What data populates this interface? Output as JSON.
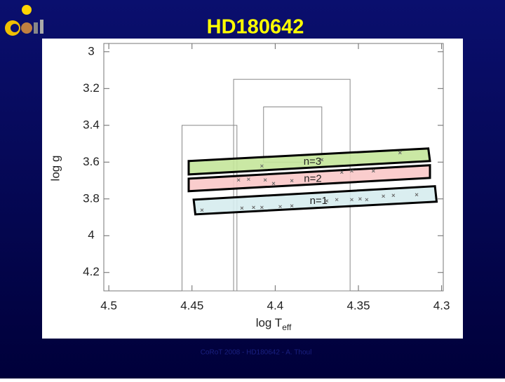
{
  "slide_title": "HD180642",
  "footer": "CoRoT 2008 - HD180642 - A. Thoul",
  "chart_data": {
    "type": "scatter",
    "xlabel": "log T",
    "xlabel_sub": "eff",
    "ylabel": "log g",
    "xlim": [
      4.503,
      4.299
    ],
    "ylim": [
      2.955,
      4.3
    ],
    "xticks": [
      4.5,
      4.45,
      4.4,
      4.35,
      4.3
    ],
    "yticks": [
      3,
      3.2,
      3.4,
      3.6,
      3.8,
      4,
      4.2
    ],
    "boxes": [
      {
        "x": [
          4.425,
          4.355
        ],
        "y": [
          3.15,
          4.3
        ]
      },
      {
        "x": [
          4.407,
          4.372
        ],
        "y": [
          3.3,
          3.6
        ]
      },
      {
        "x": [
          4.456,
          4.423
        ],
        "y": [
          3.4,
          4.3
        ]
      }
    ],
    "bands": [
      {
        "name": "n=3",
        "color": "#c4e69a",
        "x": [
          4.452,
          4.308,
          4.307,
          4.452
        ],
        "y": [
          3.594,
          3.526,
          3.594,
          3.667
        ]
      },
      {
        "name": "n=2",
        "color": "#f9c8c8",
        "x": [
          4.452,
          4.307,
          4.307,
          4.452
        ],
        "y": [
          3.69,
          3.617,
          3.686,
          3.758
        ]
      },
      {
        "name": "n=1",
        "color": "#d6ecee",
        "x": [
          4.449,
          4.304,
          4.303,
          4.448
        ],
        "y": [
          3.804,
          3.731,
          3.815,
          3.884
        ]
      }
    ],
    "points": {
      "color": "#666666",
      "x": [
        4.444,
        4.42,
        4.413,
        4.408,
        4.397,
        4.39,
        4.369,
        4.363,
        4.354,
        4.349,
        4.345,
        4.335,
        4.329,
        4.315,
        4.422,
        4.416,
        4.406,
        4.401,
        4.39,
        4.36,
        4.354,
        4.341,
        4.408,
        4.372,
        4.325
      ],
      "y": [
        3.861,
        3.85,
        3.846,
        3.846,
        3.842,
        3.838,
        3.811,
        3.804,
        3.804,
        3.8,
        3.804,
        3.785,
        3.781,
        3.777,
        3.697,
        3.693,
        3.697,
        3.716,
        3.701,
        3.655,
        3.648,
        3.648,
        3.621,
        3.587,
        3.549
      ]
    }
  }
}
